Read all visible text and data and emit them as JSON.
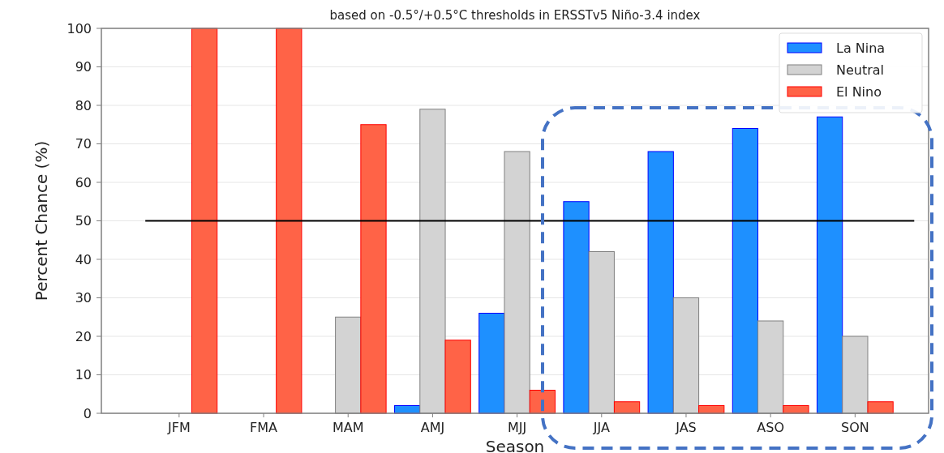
{
  "chart_data": {
    "type": "bar",
    "title": "based on -0.5°/+0.5°C thresholds in ERSSTv5 Niño-3.4 index",
    "xlabel": "Season",
    "ylabel": "Percent Chance (%)",
    "categories": [
      "JFM",
      "FMA",
      "MAM",
      "AMJ",
      "MJJ",
      "JJA",
      "JAS",
      "ASO",
      "SON"
    ],
    "series": [
      {
        "name": "La Nina",
        "color": "#1e90ff",
        "values": [
          0,
          0,
          0,
          2,
          26,
          55,
          68,
          74,
          77
        ]
      },
      {
        "name": "Neutral",
        "color": "#d3d3d3",
        "values": [
          0,
          0,
          25,
          79,
          68,
          42,
          30,
          24,
          20
        ]
      },
      {
        "name": "El Nino",
        "color": "#ff6347",
        "values": [
          100,
          100,
          75,
          19,
          6,
          3,
          2,
          2,
          3
        ]
      }
    ],
    "ylim": [
      0,
      100
    ],
    "yticks": [
      0,
      10,
      20,
      30,
      40,
      50,
      60,
      70,
      80,
      90,
      100
    ],
    "grid": "y",
    "legend": "top right",
    "ref_lines": [
      {
        "axis": "y",
        "value": 50,
        "color": "#000000"
      }
    ]
  }
}
